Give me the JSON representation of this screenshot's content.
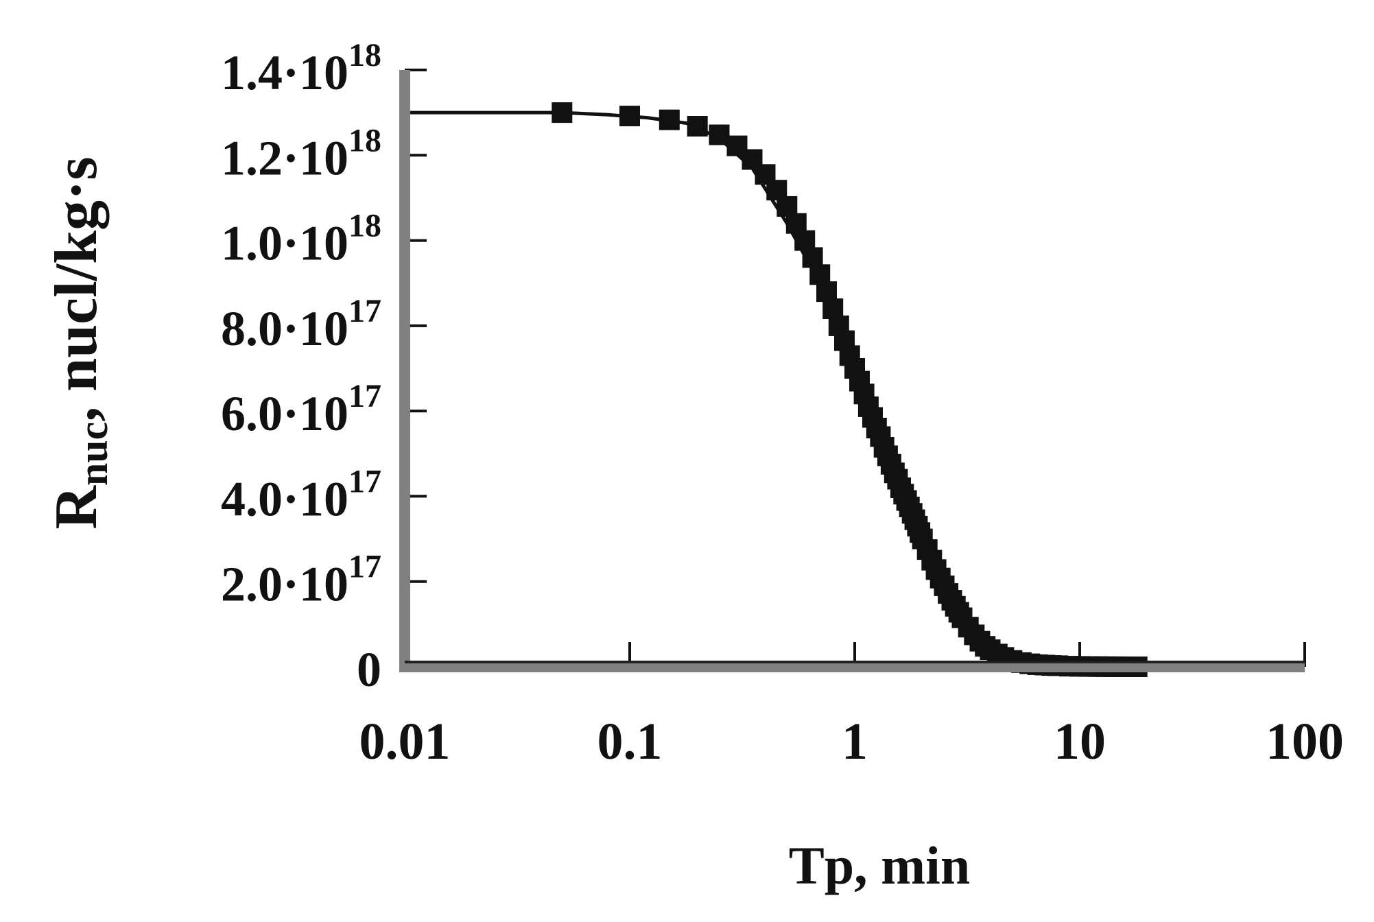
{
  "chart_data": {
    "type": "line",
    "xlabel": "Tp, min",
    "ylabel_main": "R",
    "ylabel_sub": "nuc",
    "ylabel_rest": ", nucl/kg·s",
    "x_scale": "log",
    "xlim": [
      0.01,
      100
    ],
    "ylim": [
      0,
      1.4e+18
    ],
    "x_ticks": [
      {
        "value": 0.01,
        "label": "0.01"
      },
      {
        "value": 0.1,
        "label": "0.1"
      },
      {
        "value": 1,
        "label": "1"
      },
      {
        "value": 10,
        "label": "10"
      },
      {
        "value": 100,
        "label": "100"
      }
    ],
    "y_ticks": [
      {
        "value": 0,
        "mantissa": "0",
        "exponent": ""
      },
      {
        "value": 2e+17,
        "mantissa": "2.0·10",
        "exponent": "17"
      },
      {
        "value": 4e+17,
        "mantissa": "4.0·10",
        "exponent": "17"
      },
      {
        "value": 6e+17,
        "mantissa": "6.0·10",
        "exponent": "17"
      },
      {
        "value": 8e+17,
        "mantissa": "8.0·10",
        "exponent": "17"
      },
      {
        "value": 1e+18,
        "mantissa": "1.0·10",
        "exponent": "18"
      },
      {
        "value": 1.2e+18,
        "mantissa": "1.2·10",
        "exponent": "18"
      },
      {
        "value": 1.4e+18,
        "mantissa": "1.4·10",
        "exponent": "18"
      }
    ],
    "grid": false,
    "colors": {
      "series": "#111111",
      "axis": "#808080",
      "text": "#111111"
    },
    "series": [
      {
        "line_x": [
          0.01,
          0.02,
          0.03,
          0.05,
          0.08,
          0.12,
          0.18,
          0.25,
          0.35,
          0.5,
          0.7,
          1.0,
          1.3,
          1.6,
          2.0,
          2.5,
          3.0,
          4.0,
          5.0,
          6.0,
          8.0,
          10.0,
          14.0,
          20.0
        ],
        "line_y": [
          1.3e+18,
          1.3e+18,
          1.3e+18,
          1.3e+18,
          1.295e+18,
          1.288e+18,
          1.275e+18,
          1.24e+18,
          1.17e+18,
          1.04e+18,
          9e+17,
          7e+17,
          5.5e+17,
          4.2e+17,
          3e+17,
          1.8e+17,
          1.1e+17,
          4e+16,
          1.5e+16,
          7000000000000000.0,
          3000000000000000.0,
          1000000000000000.0,
          0.0,
          0.0
        ],
        "marker_x": [
          0.05,
          0.1,
          0.15,
          0.2,
          0.25,
          0.3,
          0.35,
          0.4,
          0.45,
          0.5,
          0.55,
          0.6,
          0.65,
          0.7,
          0.75,
          0.8,
          0.85,
          0.9,
          0.95,
          1.0,
          1.05,
          1.1,
          1.15,
          1.2,
          1.25,
          1.3,
          1.35,
          1.4,
          1.45,
          1.5,
          1.55,
          1.6,
          1.65,
          1.7,
          1.75,
          1.8,
          1.85,
          1.9,
          1.95,
          2.0,
          2.1,
          2.2,
          2.3,
          2.4,
          2.5,
          2.6,
          2.7,
          2.8,
          2.9,
          3.0,
          3.2,
          3.4,
          3.6,
          3.8,
          4.0,
          4.3,
          4.6,
          5.0,
          5.5,
          6.0,
          6.5,
          7.0,
          7.5,
          8.0,
          9.0,
          10.0,
          11.0,
          12.0,
          13.0,
          14.0,
          15.0,
          16.0,
          17.0,
          18.0
        ],
        "marker_y": [
          1.3e+18,
          1.292e+18,
          1.283e+18,
          1.268e+18,
          1.248e+18,
          1.222e+18,
          1.19e+18,
          1.155e+18,
          1.118e+18,
          1.08e+18,
          1.04e+18,
          1e+18,
          9.6e+17,
          9.2e+17,
          8.8e+17,
          8.4e+17,
          8e+17,
          7.65e+17,
          7.3e+17,
          7e+17,
          6.7e+17,
          6.4e+17,
          6.1e+17,
          5.85e+17,
          5.6e+17,
          5.4e+17,
          5.15e+17,
          4.95e+17,
          4.75e+17,
          4.55e+17,
          4.4e+17,
          4.2e+17,
          4.05e+17,
          3.9e+17,
          3.75e+17,
          3.6e+17,
          3.45e+17,
          3.3e+17,
          3.15e+17,
          3e+17,
          2.75e+17,
          2.5e+17,
          2.28e+17,
          2.08e+17,
          1.9e+17,
          1.72e+17,
          1.56e+17,
          1.42e+17,
          1.28e+17,
          1.15e+17,
          9.3e+16,
          7.5e+16,
          6e+16,
          4.8e+16,
          4e+16,
          3e+16,
          2.2e+16,
          1.5e+16,
          1e+16,
          7000000000000000.0,
          5000000000000000.0,
          4000000000000000.0,
          3000000000000000.0,
          2500000000000000.0,
          1500000000000000.0,
          1000000000000000.0,
          700000000000000.0,
          500000000000000.0,
          300000000000000.0,
          200000000000000.0,
          100000000000000.0,
          0.0,
          0.0,
          0.0
        ]
      }
    ]
  }
}
